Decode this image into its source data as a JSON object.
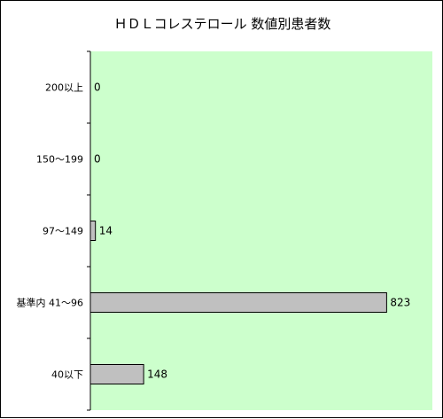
{
  "chart_data": {
    "type": "bar",
    "orientation": "horizontal",
    "title": "ＨＤＬコレステロール 数値別患者数",
    "categories": [
      "200以上",
      "150～199",
      "97～149",
      "基準内 41～96",
      "40以下"
    ],
    "values": [
      0,
      0,
      14,
      823,
      148
    ],
    "xlim": [
      0,
      950
    ],
    "grid": false,
    "colors": {
      "plot_background": "#ccffcc",
      "bar_fill": "#c0c0c0",
      "bar_stroke": "#000000"
    }
  }
}
